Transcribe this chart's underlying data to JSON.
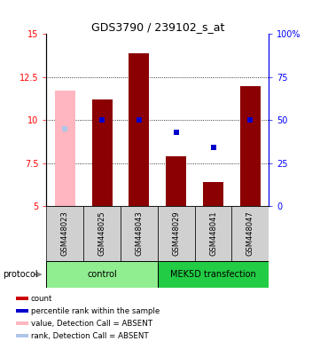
{
  "title": "GDS3790 / 239102_s_at",
  "samples": [
    "GSM448023",
    "GSM448025",
    "GSM448043",
    "GSM448029",
    "GSM448041",
    "GSM448047"
  ],
  "bar_values": [
    11.7,
    11.2,
    13.9,
    7.9,
    6.4,
    12.0
  ],
  "bar_colors": [
    "#ffb6c1",
    "#8b0000",
    "#8b0000",
    "#8b0000",
    "#8b0000",
    "#8b0000"
  ],
  "rank_values": [
    9.5,
    10.0,
    10.0,
    9.3,
    8.4,
    10.0
  ],
  "rank_absent_flags": [
    true,
    false,
    false,
    false,
    false,
    false
  ],
  "ylim_left": [
    5,
    15
  ],
  "ylim_right": [
    0,
    100
  ],
  "yticks_left": [
    5,
    7.5,
    10,
    12.5,
    15
  ],
  "yticks_right": [
    0,
    25,
    50,
    75,
    100
  ],
  "ytick_labels_left": [
    "5",
    "7.5",
    "10",
    "12.5",
    "15"
  ],
  "ytick_labels_right": [
    "0",
    "25",
    "50",
    "75",
    "100%"
  ],
  "bar_bottom": 5,
  "bar_width": 0.55,
  "dot_color_present": "#0000cc",
  "dot_color_absent": "#aec6e8",
  "dot_size": 18,
  "control_color": "#90EE90",
  "mek_color": "#22cc44",
  "sample_box_color": "#d0d0d0",
  "legend_items": [
    {
      "label": "count",
      "color": "#cc0000"
    },
    {
      "label": "percentile rank within the sample",
      "color": "#0000cc"
    },
    {
      "label": "value, Detection Call = ABSENT",
      "color": "#ffb6c1"
    },
    {
      "label": "rank, Detection Call = ABSENT",
      "color": "#aec6e8"
    }
  ],
  "protocol_label": "protocol"
}
